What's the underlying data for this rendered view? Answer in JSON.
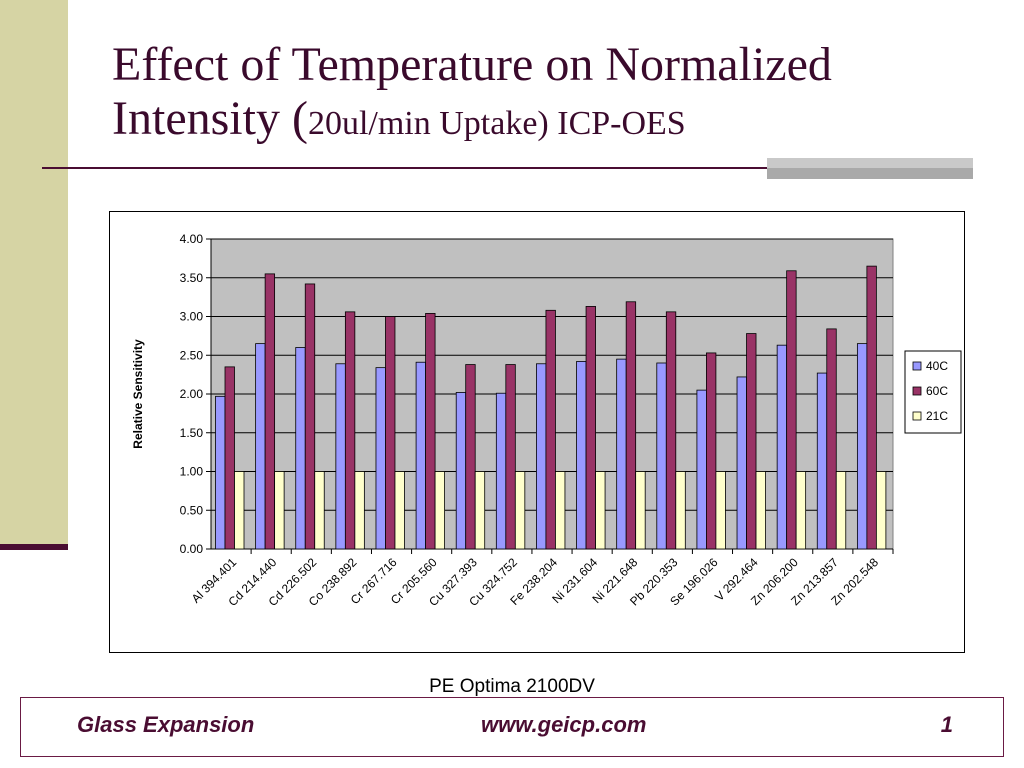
{
  "slide": {
    "title_line1": "Effect of Temperature on Normalized",
    "title_line2_main": "Intensity (",
    "title_line2_small": "20ul/min Uptake) ICP-OES",
    "caption": "PE Optima 2100DV",
    "footer_left": "Glass Expansion",
    "footer_center": "www.geicp.com",
    "footer_right": "1"
  },
  "colors": {
    "title": "#3a0a2c",
    "side_bar": "#d6d4a4",
    "accent": "#4a0d32",
    "plot_bg": "#c0c0c0",
    "series_40C": "#9999ff",
    "series_60C": "#993366",
    "series_21C": "#ffffcc"
  },
  "chart_data": {
    "type": "bar",
    "title": "",
    "xlabel": "",
    "ylabel": "Relative Sensitivity",
    "ylim": [
      0,
      4
    ],
    "yticks": [
      "0.00",
      "0.50",
      "1.00",
      "1.50",
      "2.00",
      "2.50",
      "3.00",
      "3.50",
      "4.00"
    ],
    "grid": true,
    "legend_position": "right",
    "categories": [
      "Al 394.401",
      "Cd 214.440",
      "Cd 226.502",
      "Co 238.892",
      "Cr 267.716",
      "Cr 205.560",
      "Cu 327.393",
      "Cu 324.752",
      "Fe 238.204",
      "Ni 231.604",
      "Ni 221.648",
      "Pb 220.353",
      "Se 196.026",
      "V 292.464",
      "Zn 206.200",
      "Zn 213.857",
      "Zn 202.548"
    ],
    "series": [
      {
        "name": "40C",
        "values": [
          1.97,
          2.65,
          2.6,
          2.39,
          2.34,
          2.41,
          2.02,
          2.01,
          2.39,
          2.42,
          2.45,
          2.4,
          2.05,
          2.22,
          2.63,
          2.27,
          2.65
        ]
      },
      {
        "name": "60C",
        "values": [
          2.35,
          3.55,
          3.42,
          3.06,
          3.0,
          3.04,
          2.38,
          2.38,
          3.08,
          3.13,
          3.19,
          3.06,
          2.53,
          2.78,
          3.59,
          2.84,
          3.65
        ]
      },
      {
        "name": "21C",
        "values": [
          1,
          1,
          1,
          1,
          1,
          1,
          1,
          1,
          1,
          1,
          1,
          1,
          1,
          1,
          1,
          1,
          1
        ]
      }
    ]
  }
}
